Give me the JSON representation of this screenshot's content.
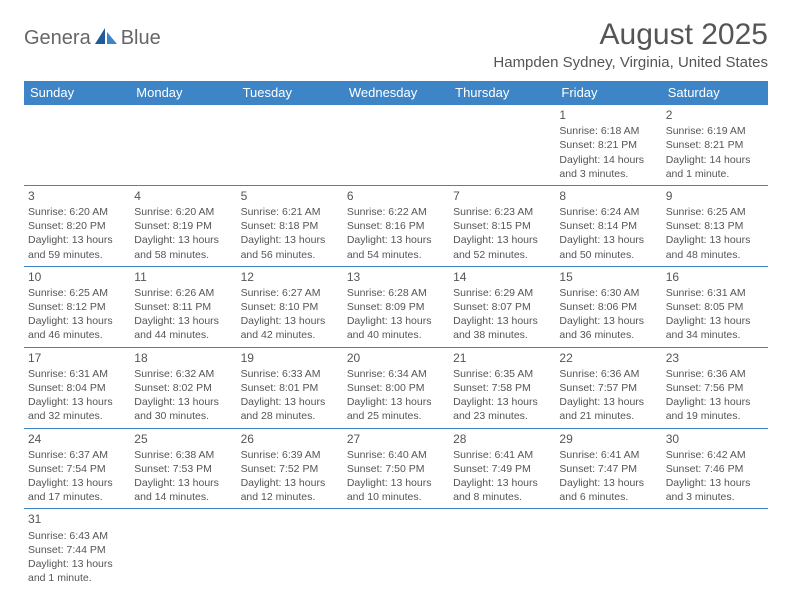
{
  "logo": {
    "part1": "Genera",
    "part2": "Blue",
    "icon_color_dark": "#1f5c99",
    "icon_color_light": "#3d85c6"
  },
  "title": "August 2025",
  "location": "Hampden Sydney, Virginia, United States",
  "header_bg": "#3d85c6",
  "days_of_week": [
    "Sunday",
    "Monday",
    "Tuesday",
    "Wednesday",
    "Thursday",
    "Friday",
    "Saturday"
  ],
  "weeks": [
    [
      null,
      null,
      null,
      null,
      null,
      {
        "n": "1",
        "sr": "Sunrise: 6:18 AM",
        "ss": "Sunset: 8:21 PM",
        "dl": "Daylight: 14 hours and 3 minutes."
      },
      {
        "n": "2",
        "sr": "Sunrise: 6:19 AM",
        "ss": "Sunset: 8:21 PM",
        "dl": "Daylight: 14 hours and 1 minute."
      }
    ],
    [
      {
        "n": "3",
        "sr": "Sunrise: 6:20 AM",
        "ss": "Sunset: 8:20 PM",
        "dl": "Daylight: 13 hours and 59 minutes."
      },
      {
        "n": "4",
        "sr": "Sunrise: 6:20 AM",
        "ss": "Sunset: 8:19 PM",
        "dl": "Daylight: 13 hours and 58 minutes."
      },
      {
        "n": "5",
        "sr": "Sunrise: 6:21 AM",
        "ss": "Sunset: 8:18 PM",
        "dl": "Daylight: 13 hours and 56 minutes."
      },
      {
        "n": "6",
        "sr": "Sunrise: 6:22 AM",
        "ss": "Sunset: 8:16 PM",
        "dl": "Daylight: 13 hours and 54 minutes."
      },
      {
        "n": "7",
        "sr": "Sunrise: 6:23 AM",
        "ss": "Sunset: 8:15 PM",
        "dl": "Daylight: 13 hours and 52 minutes."
      },
      {
        "n": "8",
        "sr": "Sunrise: 6:24 AM",
        "ss": "Sunset: 8:14 PM",
        "dl": "Daylight: 13 hours and 50 minutes."
      },
      {
        "n": "9",
        "sr": "Sunrise: 6:25 AM",
        "ss": "Sunset: 8:13 PM",
        "dl": "Daylight: 13 hours and 48 minutes."
      }
    ],
    [
      {
        "n": "10",
        "sr": "Sunrise: 6:25 AM",
        "ss": "Sunset: 8:12 PM",
        "dl": "Daylight: 13 hours and 46 minutes."
      },
      {
        "n": "11",
        "sr": "Sunrise: 6:26 AM",
        "ss": "Sunset: 8:11 PM",
        "dl": "Daylight: 13 hours and 44 minutes."
      },
      {
        "n": "12",
        "sr": "Sunrise: 6:27 AM",
        "ss": "Sunset: 8:10 PM",
        "dl": "Daylight: 13 hours and 42 minutes."
      },
      {
        "n": "13",
        "sr": "Sunrise: 6:28 AM",
        "ss": "Sunset: 8:09 PM",
        "dl": "Daylight: 13 hours and 40 minutes."
      },
      {
        "n": "14",
        "sr": "Sunrise: 6:29 AM",
        "ss": "Sunset: 8:07 PM",
        "dl": "Daylight: 13 hours and 38 minutes."
      },
      {
        "n": "15",
        "sr": "Sunrise: 6:30 AM",
        "ss": "Sunset: 8:06 PM",
        "dl": "Daylight: 13 hours and 36 minutes."
      },
      {
        "n": "16",
        "sr": "Sunrise: 6:31 AM",
        "ss": "Sunset: 8:05 PM",
        "dl": "Daylight: 13 hours and 34 minutes."
      }
    ],
    [
      {
        "n": "17",
        "sr": "Sunrise: 6:31 AM",
        "ss": "Sunset: 8:04 PM",
        "dl": "Daylight: 13 hours and 32 minutes."
      },
      {
        "n": "18",
        "sr": "Sunrise: 6:32 AM",
        "ss": "Sunset: 8:02 PM",
        "dl": "Daylight: 13 hours and 30 minutes."
      },
      {
        "n": "19",
        "sr": "Sunrise: 6:33 AM",
        "ss": "Sunset: 8:01 PM",
        "dl": "Daylight: 13 hours and 28 minutes."
      },
      {
        "n": "20",
        "sr": "Sunrise: 6:34 AM",
        "ss": "Sunset: 8:00 PM",
        "dl": "Daylight: 13 hours and 25 minutes."
      },
      {
        "n": "21",
        "sr": "Sunrise: 6:35 AM",
        "ss": "Sunset: 7:58 PM",
        "dl": "Daylight: 13 hours and 23 minutes."
      },
      {
        "n": "22",
        "sr": "Sunrise: 6:36 AM",
        "ss": "Sunset: 7:57 PM",
        "dl": "Daylight: 13 hours and 21 minutes."
      },
      {
        "n": "23",
        "sr": "Sunrise: 6:36 AM",
        "ss": "Sunset: 7:56 PM",
        "dl": "Daylight: 13 hours and 19 minutes."
      }
    ],
    [
      {
        "n": "24",
        "sr": "Sunrise: 6:37 AM",
        "ss": "Sunset: 7:54 PM",
        "dl": "Daylight: 13 hours and 17 minutes."
      },
      {
        "n": "25",
        "sr": "Sunrise: 6:38 AM",
        "ss": "Sunset: 7:53 PM",
        "dl": "Daylight: 13 hours and 14 minutes."
      },
      {
        "n": "26",
        "sr": "Sunrise: 6:39 AM",
        "ss": "Sunset: 7:52 PM",
        "dl": "Daylight: 13 hours and 12 minutes."
      },
      {
        "n": "27",
        "sr": "Sunrise: 6:40 AM",
        "ss": "Sunset: 7:50 PM",
        "dl": "Daylight: 13 hours and 10 minutes."
      },
      {
        "n": "28",
        "sr": "Sunrise: 6:41 AM",
        "ss": "Sunset: 7:49 PM",
        "dl": "Daylight: 13 hours and 8 minutes."
      },
      {
        "n": "29",
        "sr": "Sunrise: 6:41 AM",
        "ss": "Sunset: 7:47 PM",
        "dl": "Daylight: 13 hours and 6 minutes."
      },
      {
        "n": "30",
        "sr": "Sunrise: 6:42 AM",
        "ss": "Sunset: 7:46 PM",
        "dl": "Daylight: 13 hours and 3 minutes."
      }
    ],
    [
      {
        "n": "31",
        "sr": "Sunrise: 6:43 AM",
        "ss": "Sunset: 7:44 PM",
        "dl": "Daylight: 13 hours and 1 minute."
      },
      null,
      null,
      null,
      null,
      null,
      null
    ]
  ]
}
